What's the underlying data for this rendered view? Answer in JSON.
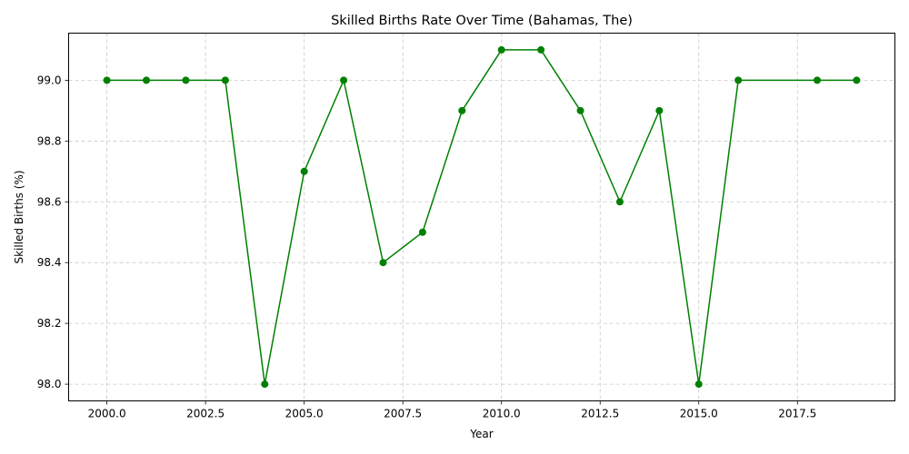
{
  "chart_data": {
    "type": "line",
    "title": "Skilled Births Rate Over Time (Bahamas, The)",
    "xlabel": "Year",
    "ylabel": "Skilled Births (%)",
    "xlim": [
      1999.03,
      2019.97
    ],
    "ylim": [
      97.945,
      99.155
    ],
    "xticks": [
      2000.0,
      2002.5,
      2005.0,
      2007.5,
      2010.0,
      2012.5,
      2015.0,
      2017.5
    ],
    "xtick_labels": [
      "2000.0",
      "2002.5",
      "2005.0",
      "2007.5",
      "2010.0",
      "2012.5",
      "2015.0",
      "2017.5"
    ],
    "yticks": [
      98.0,
      98.2,
      98.4,
      98.6,
      98.8,
      99.0
    ],
    "ytick_labels": [
      "98.0",
      "98.2",
      "98.4",
      "98.6",
      "98.8",
      "99.0"
    ],
    "grid": true,
    "legend": null,
    "series": [
      {
        "color": "#008000",
        "marker": "circle",
        "x": [
          2000,
          2001,
          2002,
          2003,
          2004,
          2005,
          2006,
          2007,
          2008,
          2009,
          2010,
          2011,
          2012,
          2013,
          2014,
          2015,
          2016,
          2018,
          2019
        ],
        "y": [
          99.0,
          99.0,
          99.0,
          99.0,
          98.0,
          98.7,
          99.0,
          98.4,
          98.5,
          98.9,
          99.1,
          99.1,
          98.9,
          98.6,
          98.9,
          98.0,
          99.0,
          99.0,
          99.0
        ]
      }
    ]
  }
}
